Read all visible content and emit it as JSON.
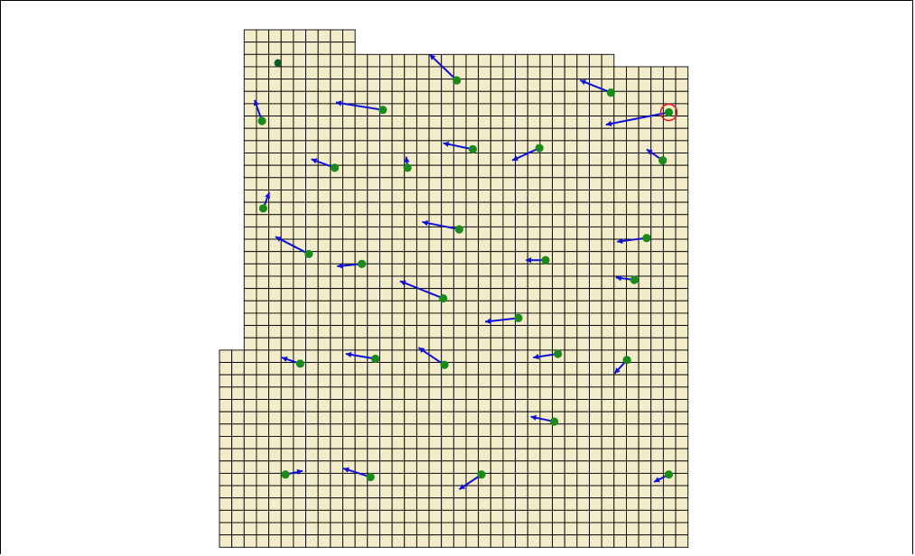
{
  "colors": {
    "cell_fill": "#f3ecca",
    "grid_line": "#000000",
    "vector": "#1010d8",
    "node": "#1a8a1a",
    "node_dark": "#0e5a2a",
    "selection_ring": "#e02020",
    "background": "#ffffff"
  },
  "grid": {
    "cols": 36,
    "rows": 43,
    "missing_top_left_block_cols": [
      0,
      0
    ],
    "note_shape": "irregular mesh region"
  },
  "vectors": [
    {
      "id": "v1",
      "x": 3.5,
      "y": 2.7,
      "dx": 0,
      "dy": 0,
      "type": "point-only"
    },
    {
      "id": "v2",
      "x": 18.0,
      "y": 4.1,
      "dx": -2.2,
      "dy": -2.1
    },
    {
      "id": "v3",
      "x": 30.5,
      "y": 5.1,
      "dx": -2.5,
      "dy": -1.0
    },
    {
      "id": "v4",
      "x": 2.2,
      "y": 7.4,
      "dx": -0.6,
      "dy": -1.7
    },
    {
      "id": "v5",
      "x": 12.0,
      "y": 6.5,
      "dx": -3.8,
      "dy": -0.6
    },
    {
      "id": "v6",
      "x": 35.2,
      "y": 6.7,
      "dx": -5.1,
      "dy": 1.0,
      "selected": true
    },
    {
      "id": "v7",
      "x": 19.3,
      "y": 9.7,
      "dx": -2.4,
      "dy": -0.5
    },
    {
      "id": "v8",
      "x": 24.7,
      "y": 9.6,
      "dx": -2.2,
      "dy": 1.0
    },
    {
      "id": "v9",
      "x": 8.1,
      "y": 11.2,
      "dx": -1.9,
      "dy": -0.7
    },
    {
      "id": "v10",
      "x": 14.0,
      "y": 11.2,
      "dx": -0.1,
      "dy": -0.9
    },
    {
      "id": "v11",
      "x": 34.7,
      "y": 10.6,
      "dx": -1.3,
      "dy": -0.9
    },
    {
      "id": "v12",
      "x": 2.3,
      "y": 14.5,
      "dx": 0.5,
      "dy": -1.3
    },
    {
      "id": "v13",
      "x": 18.2,
      "y": 16.2,
      "dx": -3.0,
      "dy": -0.6
    },
    {
      "id": "v14",
      "x": 33.4,
      "y": 16.9,
      "dx": -2.4,
      "dy": 0.3
    },
    {
      "id": "v15",
      "x": 6.0,
      "y": 18.2,
      "dx": -2.7,
      "dy": -1.4
    },
    {
      "id": "v16",
      "x": 25.2,
      "y": 18.7,
      "dx": -1.6,
      "dy": 0.0
    },
    {
      "id": "v17",
      "x": 10.3,
      "y": 19.0,
      "dx": -2.0,
      "dy": 0.2
    },
    {
      "id": "v18",
      "x": 32.4,
      "y": 20.3,
      "dx": -1.5,
      "dy": -0.2
    },
    {
      "id": "v19",
      "x": 16.9,
      "y": 21.8,
      "dx": -3.5,
      "dy": -1.4
    },
    {
      "id": "v20",
      "x": 23.0,
      "y": 23.4,
      "dx": -2.7,
      "dy": 0.3
    },
    {
      "id": "v21",
      "x": 26.2,
      "y": 26.3,
      "dx": -2.0,
      "dy": 0.3
    },
    {
      "id": "v22",
      "x": 5.3,
      "y": 27.1,
      "dx": -1.5,
      "dy": -0.5
    },
    {
      "id": "v23",
      "x": 11.4,
      "y": 26.7,
      "dx": -2.4,
      "dy": -0.4
    },
    {
      "id": "v24",
      "x": 17.0,
      "y": 27.2,
      "dx": -2.1,
      "dy": -1.4
    },
    {
      "id": "v25",
      "x": 31.8,
      "y": 26.8,
      "dx": -1.0,
      "dy": 1.1
    },
    {
      "id": "v26",
      "x": 25.9,
      "y": 31.8,
      "dx": -1.9,
      "dy": -0.4
    },
    {
      "id": "v27",
      "x": 4.1,
      "y": 36.1,
      "dx": 1.4,
      "dy": -0.3
    },
    {
      "id": "v28",
      "x": 11.0,
      "y": 36.3,
      "dx": -2.2,
      "dy": -0.7
    },
    {
      "id": "v29",
      "x": 20.0,
      "y": 36.1,
      "dx": -1.8,
      "dy": 1.2
    },
    {
      "id": "v30",
      "x": 35.2,
      "y": 36.1,
      "dx": -1.2,
      "dy": 0.6
    }
  ]
}
